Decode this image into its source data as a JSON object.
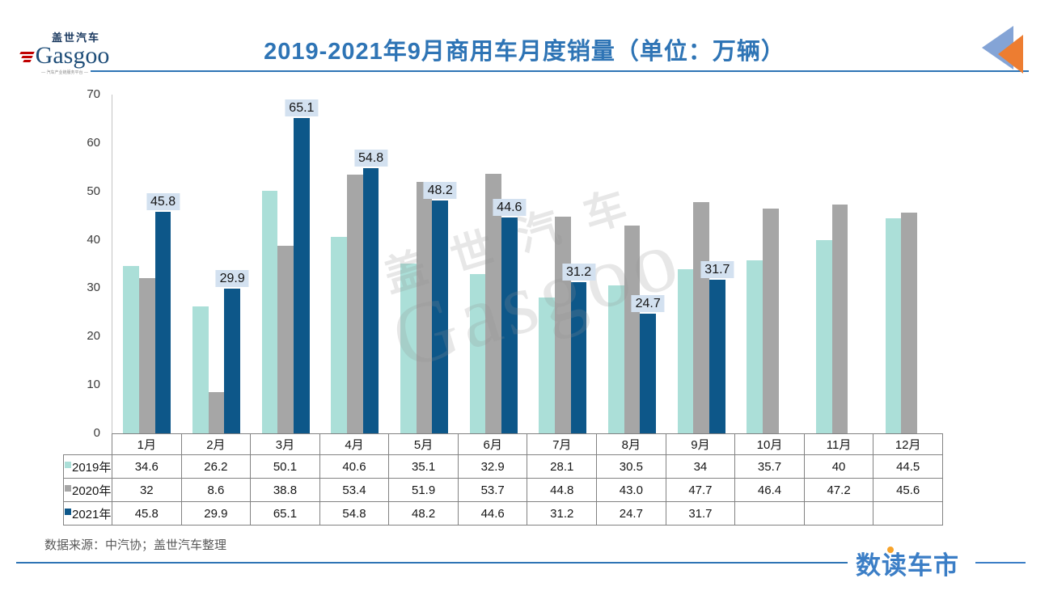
{
  "header": {
    "logo": {
      "cn": "盖世汽车",
      "en": "Gasgoo",
      "tagline": "— 汽车产业链服务平台 —"
    },
    "title": "2019-2021年9月商用车月度销量（单位：万辆）",
    "corner_icon": "double-left-triangles"
  },
  "chart_data": {
    "type": "bar",
    "title": "2019-2021年9月商用车月度销量（单位：万辆）",
    "unit": "万辆",
    "categories": [
      "1月",
      "2月",
      "3月",
      "4月",
      "5月",
      "6月",
      "7月",
      "8月",
      "9月",
      "10月",
      "11月",
      "12月"
    ],
    "series": [
      {
        "name": "2019年",
        "color": "#abdfd8",
        "values": [
          34.6,
          26.2,
          50.1,
          40.6,
          35.1,
          32.9,
          28.1,
          30.5,
          34,
          35.7,
          40,
          44.5
        ],
        "display": [
          "34.6",
          "26.2",
          "50.1",
          "40.6",
          "35.1",
          "32.9",
          "28.1",
          "30.5",
          "34",
          "35.7",
          "40",
          "44.5"
        ],
        "data_labels": false
      },
      {
        "name": "2020年",
        "color": "#a6a6a6",
        "values": [
          32,
          8.6,
          38.8,
          53.4,
          51.9,
          53.7,
          44.8,
          43.0,
          47.7,
          46.4,
          47.2,
          45.6
        ],
        "display": [
          "32",
          "8.6",
          "38.8",
          "53.4",
          "51.9",
          "53.7",
          "44.8",
          "43.0",
          "47.7",
          "46.4",
          "47.2",
          "45.6"
        ],
        "data_labels": false
      },
      {
        "name": "2021年",
        "color": "#0d5789",
        "values": [
          45.8,
          29.9,
          65.1,
          54.8,
          48.2,
          44.6,
          31.2,
          24.7,
          31.7,
          null,
          null,
          null
        ],
        "display": [
          "45.8",
          "29.9",
          "65.1",
          "54.8",
          "48.2",
          "44.6",
          "31.2",
          "24.7",
          "31.7",
          "",
          "",
          ""
        ],
        "data_labels": true,
        "label_bg": "#d3e1f0"
      }
    ],
    "ylim": [
      0,
      70
    ],
    "yticks": [
      0,
      10,
      20,
      30,
      40,
      50,
      60,
      70
    ],
    "gridlines": false,
    "legend_position": "table-row-headers",
    "watermark": {
      "line1": "盖世汽车",
      "line2": "Gasgoo"
    }
  },
  "footer": {
    "source": "数据来源：中汽协；盖世汽车整理",
    "brand": "数读车市"
  }
}
